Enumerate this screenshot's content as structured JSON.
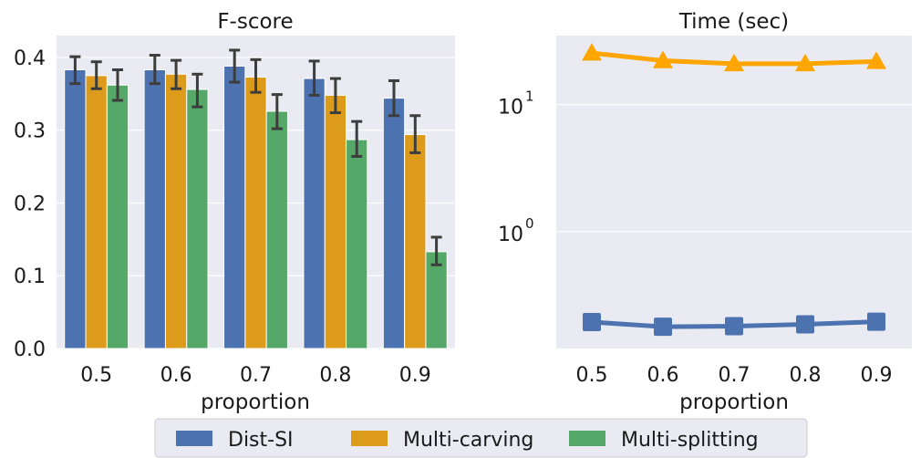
{
  "chart_data": [
    {
      "type": "bar",
      "title": "F-score",
      "xlabel": "proportion",
      "ylabel": "",
      "categories": [
        "0.5",
        "0.6",
        "0.7",
        "0.8",
        "0.9"
      ],
      "ylim": [
        0,
        0.43
      ],
      "yticks": [
        "0.0",
        "0.1",
        "0.2",
        "0.3",
        "0.4"
      ],
      "ytick_values": [
        0.0,
        0.1,
        0.2,
        0.3,
        0.4
      ],
      "grid": true,
      "series": [
        {
          "name": "Dist-SI",
          "color": "#4c72b0",
          "values": [
            0.383,
            0.383,
            0.388,
            0.371,
            0.344
          ],
          "err_low": [
            0.364,
            0.364,
            0.366,
            0.348,
            0.32
          ],
          "err_high": [
            0.401,
            0.403,
            0.41,
            0.395,
            0.368
          ]
        },
        {
          "name": "Multi-carving",
          "color": "#dd9b1c",
          "values": [
            0.375,
            0.377,
            0.373,
            0.348,
            0.294
          ],
          "err_low": [
            0.357,
            0.357,
            0.352,
            0.324,
            0.269
          ],
          "err_high": [
            0.394,
            0.396,
            0.397,
            0.371,
            0.32
          ]
        },
        {
          "name": "Multi-splitting",
          "color": "#55a868",
          "values": [
            0.362,
            0.356,
            0.326,
            0.287,
            0.133
          ],
          "err_low": [
            0.341,
            0.332,
            0.302,
            0.264,
            0.115
          ],
          "err_high": [
            0.383,
            0.377,
            0.349,
            0.312,
            0.153
          ]
        }
      ]
    },
    {
      "type": "line",
      "title": "Time (sec)",
      "xlabel": "proportion",
      "ylabel": "",
      "yscale": "log",
      "ylim": [
        0.12,
        35
      ],
      "yticks": [
        {
          "base": "10",
          "exp": "0",
          "value": 1
        },
        {
          "base": "10",
          "exp": "1",
          "value": 10
        }
      ],
      "minor_grid_values": [
        2,
        3,
        4,
        5,
        6,
        7,
        8,
        9,
        20,
        30
      ],
      "x": [
        "0.5",
        "0.6",
        "0.7",
        "0.8",
        "0.9"
      ],
      "grid": true,
      "series": [
        {
          "name": "Dist-SI",
          "color": "#4c72b0",
          "marker": "square",
          "values": [
            0.194,
            0.178,
            0.18,
            0.186,
            0.195
          ]
        },
        {
          "name": "Multi-carving",
          "color": "#ffa500",
          "marker": "triangle",
          "values": [
            25.5,
            22.2,
            21.0,
            21.0,
            21.9
          ]
        }
      ]
    }
  ],
  "legend": {
    "placement": "bottom-center",
    "entries": [
      {
        "label": "Dist-SI",
        "color": "#4c72b0"
      },
      {
        "label": "Multi-carving",
        "color": "#dd9b1c"
      },
      {
        "label": "Multi-splitting",
        "color": "#55a868"
      }
    ]
  },
  "colors": {
    "axes_bg": "#eaeaf2",
    "grid": "#ffffff",
    "errorbar": "#3d3d3d"
  }
}
